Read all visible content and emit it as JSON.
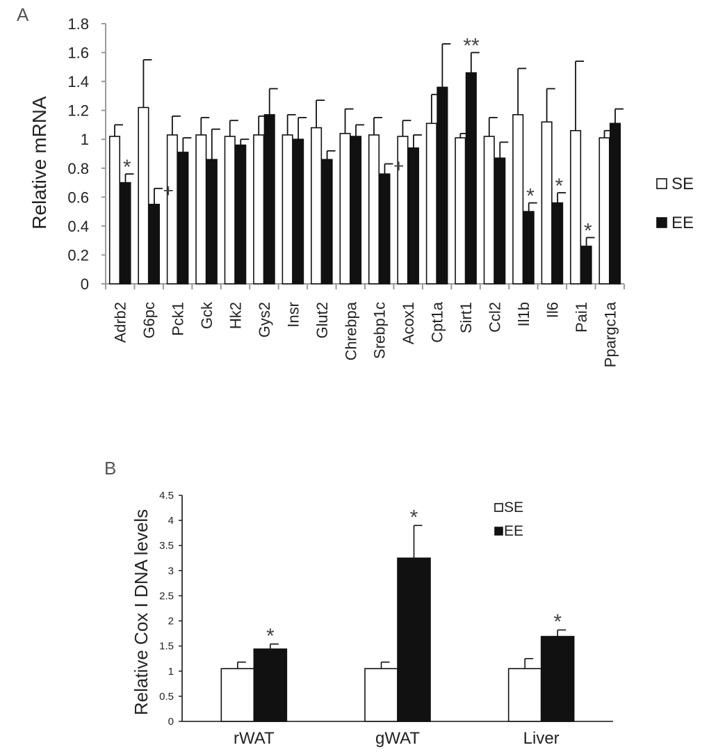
{
  "chart_data": [
    {
      "panel_label": "A",
      "type": "bar",
      "title": "",
      "xlabel": "",
      "ylabel": "Relative mRNA",
      "ylim": [
        0,
        1.8
      ],
      "ytick_labels": [
        "0",
        "0.2",
        "0.4",
        "0.6",
        "0.8",
        "1",
        "1.2",
        "1.4",
        "1.6",
        "1.8"
      ],
      "legend_position": "right",
      "categories": [
        "Adrb2",
        "G6pc",
        "Pck1",
        "Gck",
        "Hk2",
        "Gys2",
        "Insr",
        "Glut2",
        "Chrebpa",
        "Srebp1c",
        "Acox1",
        "Cpt1a",
        "Sirt1",
        "Ccl2",
        "Il1b",
        "Il6",
        "Pai1",
        "Ppargc1a"
      ],
      "series": [
        {
          "name": "SE",
          "color": "#ffffff",
          "values": [
            1.02,
            1.22,
            1.03,
            1.03,
            1.02,
            1.03,
            1.03,
            1.08,
            1.04,
            1.03,
            1.02,
            1.11,
            1.01,
            1.02,
            1.17,
            1.12,
            1.06,
            1.01
          ],
          "errors": [
            0.08,
            0.33,
            0.13,
            0.12,
            0.11,
            0.13,
            0.14,
            0.19,
            0.17,
            0.12,
            0.11,
            0.2,
            0.03,
            0.13,
            0.32,
            0.23,
            0.48,
            0.05
          ]
        },
        {
          "name": "EE",
          "color": "#111111",
          "values": [
            0.7,
            0.55,
            0.91,
            0.86,
            0.96,
            1.17,
            1.0,
            0.86,
            1.02,
            0.76,
            0.94,
            1.36,
            1.46,
            0.87,
            0.5,
            0.56,
            0.26,
            1.11
          ],
          "errors": [
            0.06,
            0.11,
            0.1,
            0.21,
            0.04,
            0.18,
            0.15,
            0.06,
            0.08,
            0.07,
            0.09,
            0.3,
            0.14,
            0.11,
            0.06,
            0.07,
            0.06,
            0.1
          ]
        }
      ],
      "annotations": [
        {
          "category": "Adrb2",
          "text": "*"
        },
        {
          "category": "G6pc",
          "text": "+"
        },
        {
          "category": "Srebp1c",
          "text": "+"
        },
        {
          "category": "Sirt1",
          "text": "**"
        },
        {
          "category": "Il1b",
          "text": "*"
        },
        {
          "category": "Il6",
          "text": "*"
        },
        {
          "category": "Pai1",
          "text": "*"
        }
      ]
    },
    {
      "panel_label": "B",
      "type": "bar",
      "title": "",
      "xlabel": "",
      "ylabel": "Relative Cox I DNA levels",
      "ylim": [
        0,
        4.5
      ],
      "ytick_labels": [
        "0",
        "0.5",
        "1",
        "1.5",
        "2",
        "2.5",
        "3",
        "3.5",
        "4",
        "4.5"
      ],
      "legend_position": "top-right",
      "categories": [
        "rWAT",
        "gWAT",
        "Liver"
      ],
      "series": [
        {
          "name": "SE",
          "color": "#ffffff",
          "values": [
            1.05,
            1.05,
            1.05
          ],
          "errors": [
            0.13,
            0.13,
            0.2
          ]
        },
        {
          "name": "EE",
          "color": "#111111",
          "values": [
            1.44,
            3.25,
            1.69
          ],
          "errors": [
            0.1,
            0.65,
            0.13
          ]
        }
      ],
      "annotations": [
        {
          "category": "rWAT",
          "text": "*"
        },
        {
          "category": "gWAT",
          "text": "*"
        },
        {
          "category": "Liver",
          "text": "*"
        }
      ]
    }
  ]
}
